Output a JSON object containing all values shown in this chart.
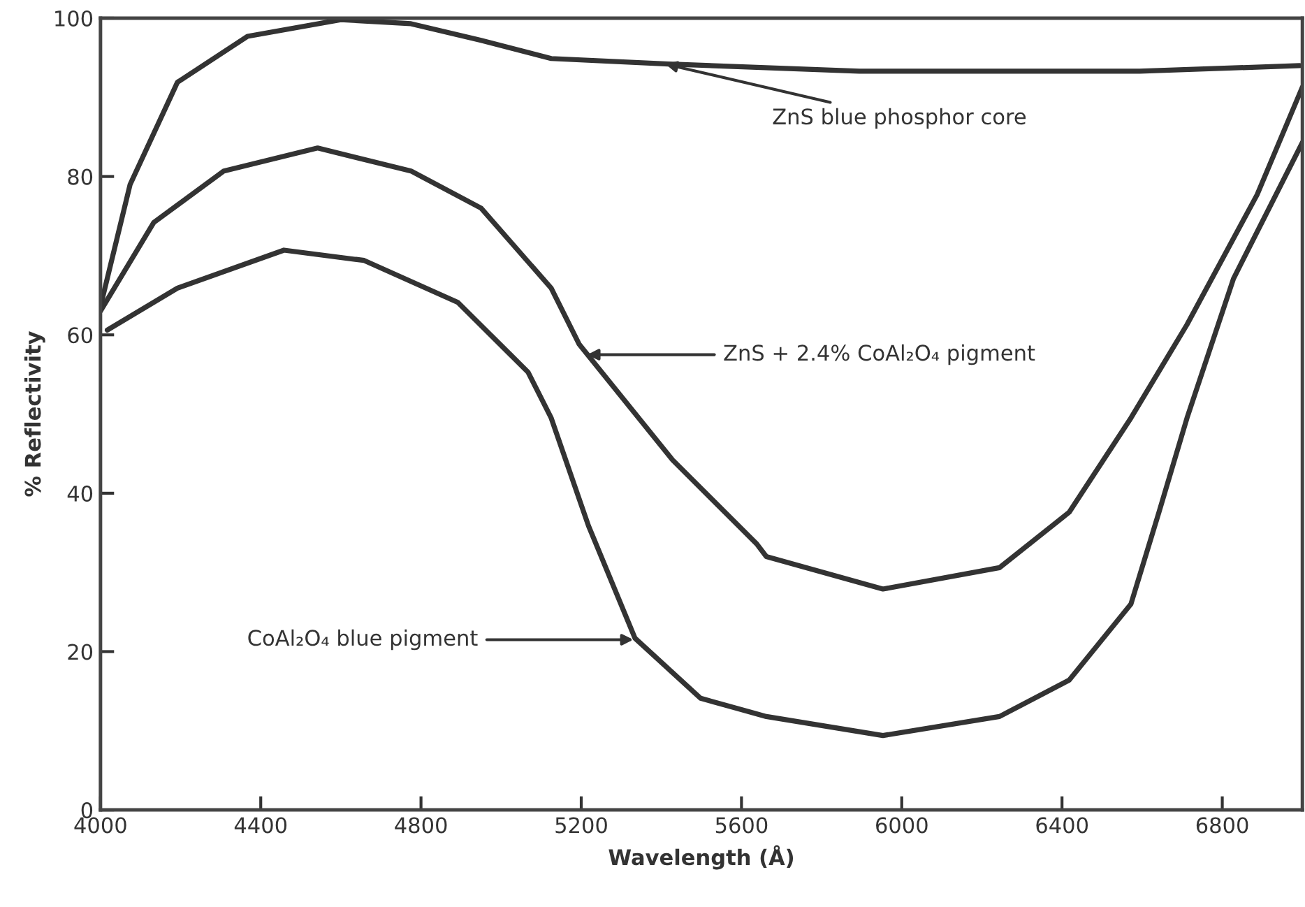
{
  "chart_data": {
    "type": "line",
    "xlabel": "Wavelength (Å)",
    "ylabel": "% Reflectivity",
    "xlim": [
      4000,
      7000
    ],
    "ylim": [
      0,
      100
    ],
    "xticks": [
      4000,
      4400,
      4800,
      5200,
      5600,
      6000,
      6400,
      6800
    ],
    "yticks": [
      0,
      20,
      40,
      60,
      80,
      100
    ],
    "grid": false,
    "legend": false,
    "marker": "none",
    "line_style": "solid",
    "series": [
      {
        "color": "#333333",
        "x": [
          4000,
          4074,
          4192,
          4367,
          4600,
          4775,
          4950,
          5125,
          5418,
          5894,
          6594,
          6993
        ],
        "values": [
          63.6,
          79,
          91.9,
          97.7,
          99.8,
          99.3,
          97.2,
          94.9,
          94.2,
          93.3,
          93.3,
          94.0
        ]
      },
      {
        "color": "#333333",
        "x": [
          4000,
          4133,
          4308,
          4542,
          4775,
          4950,
          5125,
          5195,
          5428,
          5638,
          5662,
          5953,
          6244,
          6418,
          6572,
          6712,
          6887,
          7000
        ],
        "values": [
          63,
          74.2,
          80.7,
          83.6,
          80.7,
          76,
          65.9,
          58.8,
          44.2,
          33.6,
          32,
          27.9,
          30.6,
          37.6,
          49.5,
          61.3,
          77.7,
          91.3
        ]
      },
      {
        "color": "#333333",
        "x": [
          4017,
          4192,
          4458,
          4658,
          4892,
          5067,
          5125,
          5218,
          5334,
          5498,
          5662,
          5953,
          6244,
          6418,
          6572,
          6642,
          6712,
          6828,
          7000
        ],
        "values": [
          60.6,
          65.9,
          70.7,
          69.4,
          64.1,
          55.3,
          49.5,
          35.9,
          21.7,
          14.1,
          11.8,
          9.4,
          11.8,
          16.4,
          26,
          37.6,
          49.5,
          67.1,
          84.3
        ]
      }
    ],
    "annotations": [
      {
        "text": "ZnS blue phosphor core",
        "x": 5410,
        "y": 94.2
      },
      {
        "text": "ZnS + 2.4% CoAl₂O₄ pigment",
        "x": 5215,
        "y": 57.5
      },
      {
        "text": "CoAl₂O₄ blue pigment",
        "x": 5330,
        "y": 21.5
      }
    ]
  }
}
